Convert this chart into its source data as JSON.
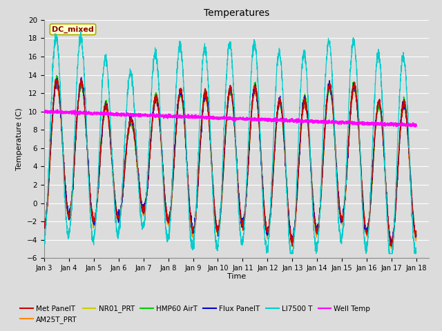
{
  "title": "Temperatures",
  "xlabel": "Time",
  "ylabel": "Temperature (C)",
  "ylim": [
    -6,
    20
  ],
  "background_color": "#dcdcdc",
  "plot_bg_color": "#dcdcdc",
  "annotation_text": "DC_mixed",
  "annotation_color": "#8b0000",
  "annotation_bg": "#ffffcc",
  "colors": {
    "Met PanelT": "#cc0000",
    "AM25T_PRT": "#ff8800",
    "NR01_PRT": "#cccc00",
    "HMP60 AirT": "#00cc00",
    "Flux PanelT": "#0000cc",
    "LI7500 T": "#00cccc",
    "Well Temp": "#ff00ff"
  },
  "num_points": 3000
}
